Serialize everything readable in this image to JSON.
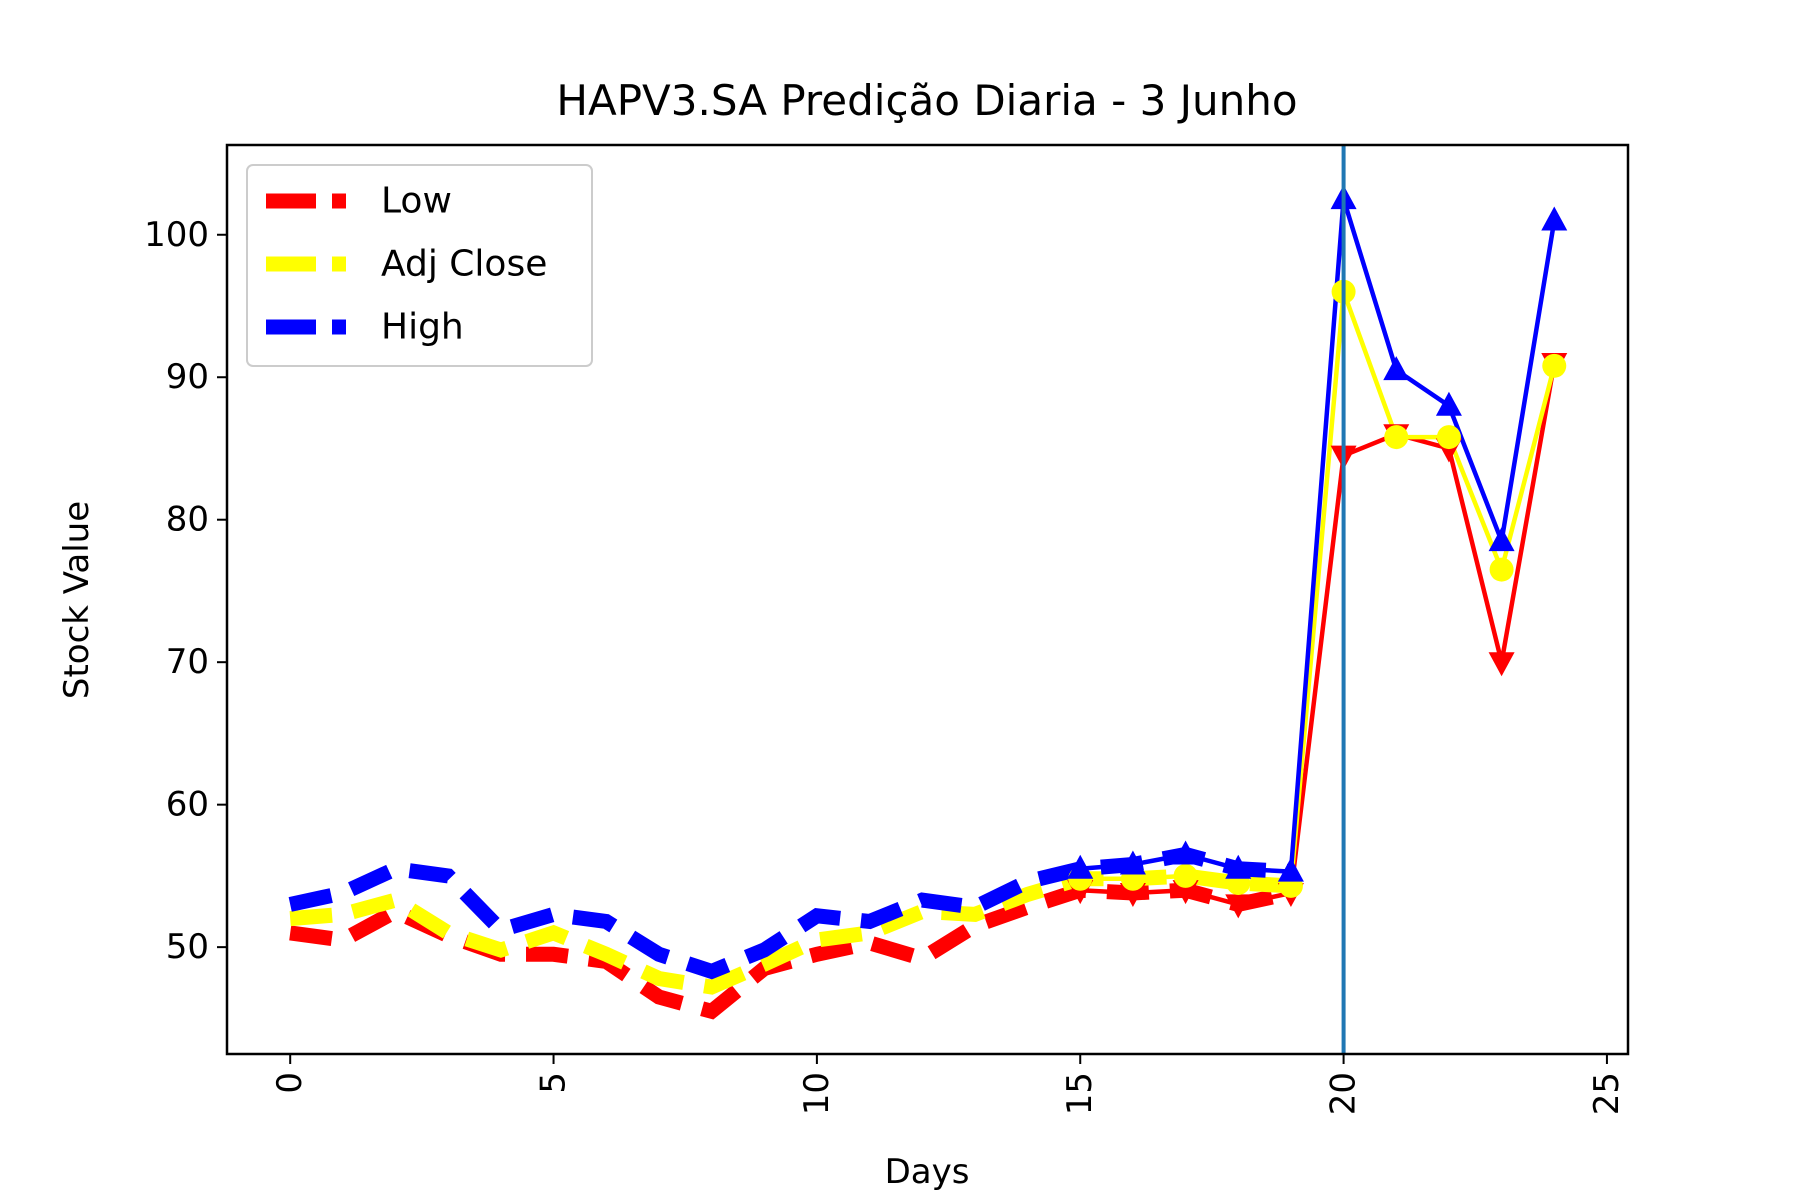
{
  "chart_data": {
    "type": "line",
    "title": "HAPV3.SA Predição Diaria - 3 Junho",
    "xlabel": "Days",
    "ylabel": "Stock Value",
    "xlim": [
      -1.2,
      25.4
    ],
    "ylim": [
      42.5,
      106.3
    ],
    "xticks": [
      0,
      5,
      10,
      15,
      20,
      25
    ],
    "yticks": [
      50,
      60,
      70,
      80,
      90,
      100
    ],
    "x_tick_rotation": 90,
    "legend_position": "upper-left",
    "grid": false,
    "vline": {
      "x": 20,
      "color": "#1f77b4"
    },
    "series": [
      {
        "name": "Low",
        "color": "#ff0000",
        "hist_x": [
          0,
          1,
          2,
          3,
          4,
          5,
          6,
          7,
          8,
          9,
          10,
          11,
          12,
          13,
          14,
          15,
          16,
          17,
          18,
          19
        ],
        "hist_y": [
          51.0,
          50.5,
          52.5,
          50.8,
          49.5,
          49.5,
          49.0,
          46.5,
          45.5,
          48.5,
          49.5,
          50.3,
          49.2,
          51.5,
          52.8,
          54.0,
          53.8,
          54.0,
          53.0,
          53.8
        ],
        "pred_x": [
          15,
          16,
          17,
          18,
          19,
          20,
          21,
          22,
          23,
          24
        ],
        "pred_y": [
          54.0,
          53.8,
          54.0,
          53.0,
          53.8,
          84.5,
          86.0,
          85.0,
          70.0,
          91.0
        ],
        "marker": "triangle-down"
      },
      {
        "name": "Adj Close",
        "color": "#ffff00",
        "hist_x": [
          0,
          1,
          2,
          3,
          4,
          5,
          6,
          7,
          8,
          9,
          10,
          11,
          12,
          13,
          14,
          15,
          16,
          17,
          18,
          19
        ],
        "hist_y": [
          52.0,
          52.3,
          53.3,
          51.0,
          49.8,
          51.0,
          49.5,
          47.8,
          47.2,
          48.8,
          50.5,
          51.0,
          52.5,
          52.3,
          53.7,
          54.8,
          54.8,
          55.0,
          54.5,
          54.3
        ],
        "pred_x": [
          15,
          16,
          17,
          18,
          19,
          20,
          21,
          22,
          23,
          24
        ],
        "pred_y": [
          54.8,
          54.8,
          55.0,
          54.5,
          54.3,
          96.0,
          85.8,
          85.8,
          76.5,
          90.8
        ],
        "marker": "circle"
      },
      {
        "name": "High",
        "color": "#0000ff",
        "hist_x": [
          0,
          1,
          2,
          3,
          4,
          5,
          6,
          7,
          8,
          9,
          10,
          11,
          12,
          13,
          14,
          15,
          16,
          17,
          18,
          19
        ],
        "hist_y": [
          53.0,
          53.8,
          55.5,
          55.0,
          51.2,
          52.3,
          51.8,
          49.5,
          48.3,
          49.8,
          52.2,
          51.8,
          53.3,
          52.8,
          54.6,
          55.5,
          55.8,
          56.5,
          55.5,
          55.3
        ],
        "pred_x": [
          15,
          16,
          17,
          18,
          19,
          20,
          21,
          22,
          23,
          24
        ],
        "pred_y": [
          55.5,
          55.8,
          56.5,
          55.5,
          55.3,
          102.5,
          90.5,
          88.0,
          78.5,
          101.0
        ],
        "marker": "triangle-up"
      }
    ]
  }
}
